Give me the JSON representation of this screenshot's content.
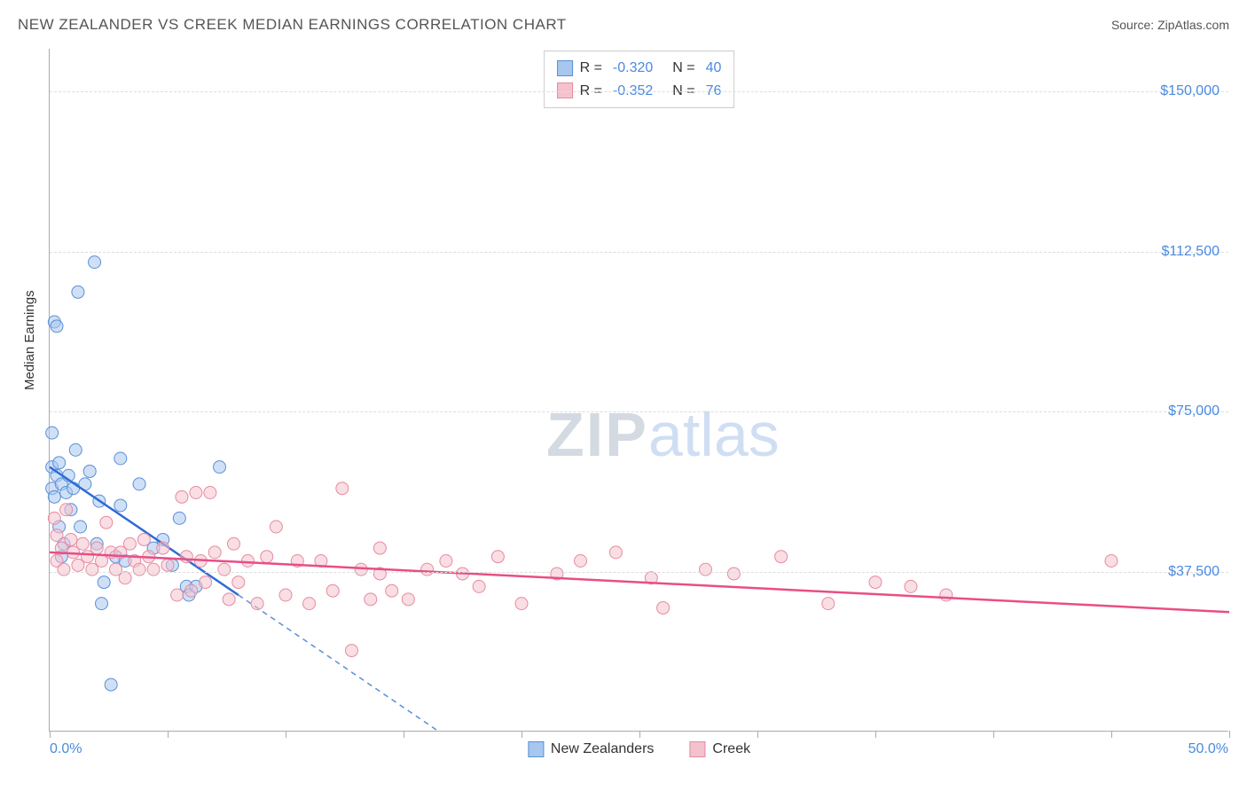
{
  "title": "NEW ZEALANDER VS CREEK MEDIAN EARNINGS CORRELATION CHART",
  "source": "Source: ZipAtlas.com",
  "y_axis_label": "Median Earnings",
  "watermark_a": "ZIP",
  "watermark_b": "atlas",
  "chart": {
    "type": "scatter",
    "xlim": [
      0,
      50
    ],
    "ylim": [
      0,
      160000
    ],
    "x_ticks": [
      0,
      5,
      10,
      15,
      20,
      25,
      30,
      35,
      40,
      45,
      50
    ],
    "x_tick_labels": {
      "start": "0.0%",
      "end": "50.0%"
    },
    "y_ticks": [
      37500,
      75000,
      112500,
      150000
    ],
    "y_tick_labels": [
      "$37,500",
      "$75,000",
      "$112,500",
      "$150,000"
    ],
    "background_color": "#ffffff",
    "grid_color": "#dddddd",
    "axis_color": "#aaaaaa",
    "label_color": "#4a8ae0",
    "marker_radius": 7,
    "marker_opacity": 0.55,
    "series": [
      {
        "name": "New Zealanders",
        "color_fill": "#a7c7ef",
        "color_stroke": "#5a8fd6",
        "regression": {
          "x1": 0,
          "y1": 62000,
          "x2": 8,
          "y2": 32000,
          "color": "#2e6bd6",
          "width": 2.5
        },
        "regression_ext": {
          "x1": 8,
          "y1": 32000,
          "x2": 16.5,
          "y2": 0,
          "dash": "6,5",
          "color": "#5a8fd6",
          "width": 1.5
        },
        "R": "-0.320",
        "N": "40",
        "points": [
          [
            0.1,
            70000
          ],
          [
            0.1,
            57000
          ],
          [
            0.1,
            62000
          ],
          [
            0.2,
            55000
          ],
          [
            0.2,
            96000
          ],
          [
            0.3,
            95000
          ],
          [
            0.3,
            60000
          ],
          [
            0.4,
            48000
          ],
          [
            0.4,
            63000
          ],
          [
            0.5,
            58000
          ],
          [
            0.5,
            41000
          ],
          [
            0.6,
            44000
          ],
          [
            0.7,
            56000
          ],
          [
            0.8,
            60000
          ],
          [
            0.9,
            52000
          ],
          [
            1.0,
            57000
          ],
          [
            1.1,
            66000
          ],
          [
            1.2,
            103000
          ],
          [
            1.3,
            48000
          ],
          [
            1.5,
            58000
          ],
          [
            1.7,
            61000
          ],
          [
            1.9,
            110000
          ],
          [
            2.0,
            44000
          ],
          [
            2.1,
            54000
          ],
          [
            2.2,
            30000
          ],
          [
            2.3,
            35000
          ],
          [
            2.8,
            41000
          ],
          [
            3.0,
            64000
          ],
          [
            3.0,
            53000
          ],
          [
            3.2,
            40000
          ],
          [
            3.8,
            58000
          ],
          [
            4.4,
            43000
          ],
          [
            4.8,
            45000
          ],
          [
            5.2,
            39000
          ],
          [
            5.5,
            50000
          ],
          [
            5.8,
            34000
          ],
          [
            5.9,
            32000
          ],
          [
            6.2,
            34000
          ],
          [
            7.2,
            62000
          ],
          [
            2.6,
            11000
          ]
        ]
      },
      {
        "name": "Creek",
        "color_fill": "#f4c2cd",
        "color_stroke": "#e78aa0",
        "regression": {
          "x1": 0,
          "y1": 42000,
          "x2": 50,
          "y2": 28000,
          "color": "#e84e86",
          "width": 2.5
        },
        "R": "-0.352",
        "N": "76",
        "points": [
          [
            0.2,
            50000
          ],
          [
            0.3,
            40000
          ],
          [
            0.3,
            46000
          ],
          [
            0.5,
            43000
          ],
          [
            0.6,
            38000
          ],
          [
            0.7,
            52000
          ],
          [
            0.9,
            45000
          ],
          [
            1.0,
            42000
          ],
          [
            1.2,
            39000
          ],
          [
            1.4,
            44000
          ],
          [
            1.6,
            41000
          ],
          [
            1.8,
            38000
          ],
          [
            2.0,
            43000
          ],
          [
            2.2,
            40000
          ],
          [
            2.4,
            49000
          ],
          [
            2.6,
            42000
          ],
          [
            2.8,
            38000
          ],
          [
            3.0,
            42000
          ],
          [
            3.2,
            36000
          ],
          [
            3.4,
            44000
          ],
          [
            3.6,
            40000
          ],
          [
            3.8,
            38000
          ],
          [
            4.0,
            45000
          ],
          [
            4.2,
            41000
          ],
          [
            4.4,
            38000
          ],
          [
            4.8,
            43000
          ],
          [
            5.0,
            39000
          ],
          [
            5.4,
            32000
          ],
          [
            5.6,
            55000
          ],
          [
            5.8,
            41000
          ],
          [
            6.0,
            33000
          ],
          [
            6.2,
            56000
          ],
          [
            6.4,
            40000
          ],
          [
            6.6,
            35000
          ],
          [
            6.8,
            56000
          ],
          [
            7.0,
            42000
          ],
          [
            7.4,
            38000
          ],
          [
            7.6,
            31000
          ],
          [
            7.8,
            44000
          ],
          [
            8.0,
            35000
          ],
          [
            8.4,
            40000
          ],
          [
            8.8,
            30000
          ],
          [
            9.2,
            41000
          ],
          [
            9.6,
            48000
          ],
          [
            10.0,
            32000
          ],
          [
            10.5,
            40000
          ],
          [
            11.0,
            30000
          ],
          [
            11.5,
            40000
          ],
          [
            12.0,
            33000
          ],
          [
            12.4,
            57000
          ],
          [
            12.8,
            19000
          ],
          [
            13.2,
            38000
          ],
          [
            13.6,
            31000
          ],
          [
            14.0,
            43000
          ],
          [
            14.0,
            37000
          ],
          [
            14.5,
            33000
          ],
          [
            15.2,
            31000
          ],
          [
            16.0,
            38000
          ],
          [
            16.8,
            40000
          ],
          [
            17.5,
            37000
          ],
          [
            18.2,
            34000
          ],
          [
            19.0,
            41000
          ],
          [
            20.0,
            30000
          ],
          [
            21.5,
            37000
          ],
          [
            22.5,
            40000
          ],
          [
            24.0,
            42000
          ],
          [
            25.5,
            36000
          ],
          [
            26.0,
            29000
          ],
          [
            27.8,
            38000
          ],
          [
            29.0,
            37000
          ],
          [
            31.0,
            41000
          ],
          [
            33.0,
            30000
          ],
          [
            35.0,
            35000
          ],
          [
            36.5,
            34000
          ],
          [
            38.0,
            32000
          ],
          [
            45.0,
            40000
          ]
        ]
      }
    ]
  },
  "legend_top": {
    "label_R": "R =",
    "label_N": "N ="
  },
  "legend_bottom": [
    {
      "label": "New Zealanders",
      "fill": "#a7c7ef",
      "stroke": "#5a8fd6"
    },
    {
      "label": "Creek",
      "fill": "#f4c2cd",
      "stroke": "#e78aa0"
    }
  ]
}
